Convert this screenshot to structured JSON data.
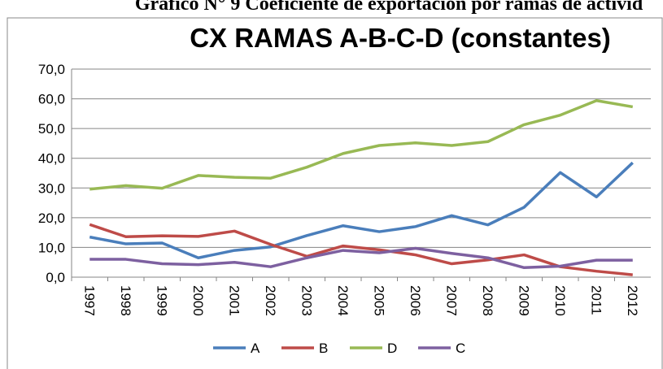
{
  "header": "Gráfico N° 9 Coeficiente de exportación por ramas de activid",
  "chart_data": {
    "type": "line",
    "title": "CX RAMAS A-B-C-D (constantes)",
    "categories": [
      "1997",
      "1998",
      "1999",
      "2000",
      "2001",
      "2002",
      "2003",
      "2004",
      "2005",
      "2006",
      "2007",
      "2008",
      "2009",
      "2010",
      "2011",
      "2012"
    ],
    "series": [
      {
        "name": "A",
        "color": "#4a7ebb",
        "values": [
          13.5,
          11.2,
          11.5,
          6.5,
          9.0,
          10.2,
          14.0,
          17.3,
          15.3,
          17.0,
          20.7,
          17.6,
          23.5,
          35.2,
          27.0,
          38.5
        ]
      },
      {
        "name": "B",
        "color": "#be4b48",
        "values": [
          17.7,
          13.6,
          13.9,
          13.7,
          15.5,
          11.0,
          7.0,
          10.5,
          9.2,
          7.5,
          4.5,
          5.8,
          7.5,
          3.5,
          2.0,
          0.8
        ]
      },
      {
        "name": "D",
        "color": "#98b954",
        "values": [
          29.6,
          30.8,
          29.9,
          34.2,
          33.6,
          33.3,
          37.0,
          41.6,
          44.3,
          45.2,
          44.3,
          45.6,
          51.3,
          54.5,
          59.4,
          57.3
        ]
      },
      {
        "name": "C",
        "color": "#7d60a0",
        "values": [
          6.0,
          6.0,
          4.5,
          4.2,
          5.0,
          3.5,
          6.5,
          9.0,
          8.2,
          9.7,
          8.0,
          6.5,
          3.2,
          3.7,
          5.7,
          5.7
        ]
      }
    ],
    "ylim": [
      0,
      70
    ],
    "yticks": [
      {
        "value": 0,
        "label": "0,0"
      },
      {
        "value": 10,
        "label": "10,0"
      },
      {
        "value": 20,
        "label": "20,0"
      },
      {
        "value": 30,
        "label": "30,0"
      },
      {
        "value": 40,
        "label": "40,0"
      },
      {
        "value": 50,
        "label": "50,0"
      },
      {
        "value": 60,
        "label": "60,0"
      },
      {
        "value": 70,
        "label": "70,0"
      }
    ],
    "grid": true,
    "legend": "bottom"
  }
}
